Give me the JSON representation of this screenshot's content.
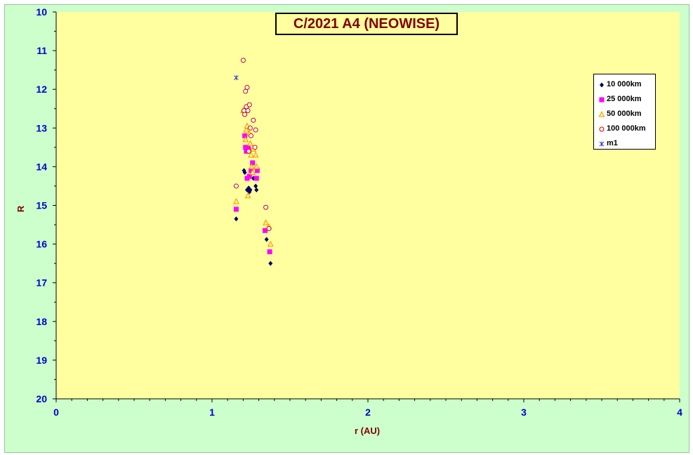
{
  "chart_data": {
    "type": "scatter",
    "title": "C/2021 A4 (NEOWISE)",
    "xlabel": "r (AU)",
    "ylabel": "R",
    "xlim": [
      0,
      4
    ],
    "ylim": [
      10,
      20
    ],
    "y_inverted": true,
    "x_ticks": [
      "0",
      "1",
      "2",
      "3",
      "4"
    ],
    "y_ticks": [
      "10",
      "11",
      "12",
      "13",
      "14",
      "15",
      "16",
      "17",
      "18",
      "19",
      "20"
    ],
    "grid": false,
    "legend_position": "right",
    "colors": {
      "background": "#ccffcc",
      "plot_area": "#ffffa0",
      "title_text": "#800000",
      "tick_text": "#0000cc"
    },
    "series": [
      {
        "name": "10 000km",
        "marker": "diamond",
        "color": "#000066",
        "points": [
          [
            1.155,
            15.35
          ],
          [
            1.205,
            14.1
          ],
          [
            1.21,
            14.15
          ],
          [
            1.225,
            14.6
          ],
          [
            1.235,
            14.55
          ],
          [
            1.24,
            14.65
          ],
          [
            1.245,
            14.6
          ],
          [
            1.265,
            14.3
          ],
          [
            1.28,
            14.5
          ],
          [
            1.285,
            14.6
          ],
          [
            1.35,
            15.88
          ],
          [
            1.375,
            16.5
          ]
        ]
      },
      {
        "name": "25 000km",
        "marker": "square",
        "color": "#ff00ff",
        "points": [
          [
            1.155,
            15.1
          ],
          [
            1.21,
            13.2
          ],
          [
            1.215,
            13.5
          ],
          [
            1.22,
            13.6
          ],
          [
            1.225,
            14.3
          ],
          [
            1.23,
            13.5
          ],
          [
            1.235,
            13.55
          ],
          [
            1.24,
            14.25
          ],
          [
            1.25,
            14.1
          ],
          [
            1.26,
            13.9
          ],
          [
            1.285,
            14.3
          ],
          [
            1.29,
            14.1
          ],
          [
            1.34,
            15.65
          ],
          [
            1.37,
            16.2
          ]
        ]
      },
      {
        "name": "50 000km",
        "marker": "triangle",
        "color": "#ff8c00",
        "points": [
          [
            1.155,
            14.9
          ],
          [
            1.2,
            12.55
          ],
          [
            1.215,
            13.3
          ],
          [
            1.22,
            13.05
          ],
          [
            1.225,
            12.95
          ],
          [
            1.23,
            14.75
          ],
          [
            1.24,
            13.15
          ],
          [
            1.245,
            13.4
          ],
          [
            1.25,
            13.7
          ],
          [
            1.255,
            14.0
          ],
          [
            1.26,
            14.15
          ],
          [
            1.265,
            13.55
          ],
          [
            1.28,
            13.7
          ],
          [
            1.285,
            14.0
          ],
          [
            1.345,
            15.45
          ],
          [
            1.365,
            15.55
          ],
          [
            1.375,
            16.0
          ]
        ]
      },
      {
        "name": "100 000km",
        "marker": "circle",
        "color": "#cc0000",
        "points": [
          [
            1.155,
            14.5
          ],
          [
            1.2,
            11.25
          ],
          [
            1.205,
            12.55
          ],
          [
            1.21,
            12.65
          ],
          [
            1.215,
            12.05
          ],
          [
            1.22,
            12.45
          ],
          [
            1.225,
            11.95
          ],
          [
            1.23,
            12.55
          ],
          [
            1.235,
            13.6
          ],
          [
            1.24,
            12.4
          ],
          [
            1.245,
            13.0
          ],
          [
            1.25,
            13.2
          ],
          [
            1.265,
            12.8
          ],
          [
            1.275,
            13.5
          ],
          [
            1.28,
            13.05
          ],
          [
            1.345,
            15.05
          ],
          [
            1.365,
            15.6
          ]
        ]
      },
      {
        "name": "m1",
        "marker": "asterisk",
        "color": "#3333cc",
        "points": [
          [
            1.155,
            11.7
          ]
        ]
      }
    ]
  }
}
